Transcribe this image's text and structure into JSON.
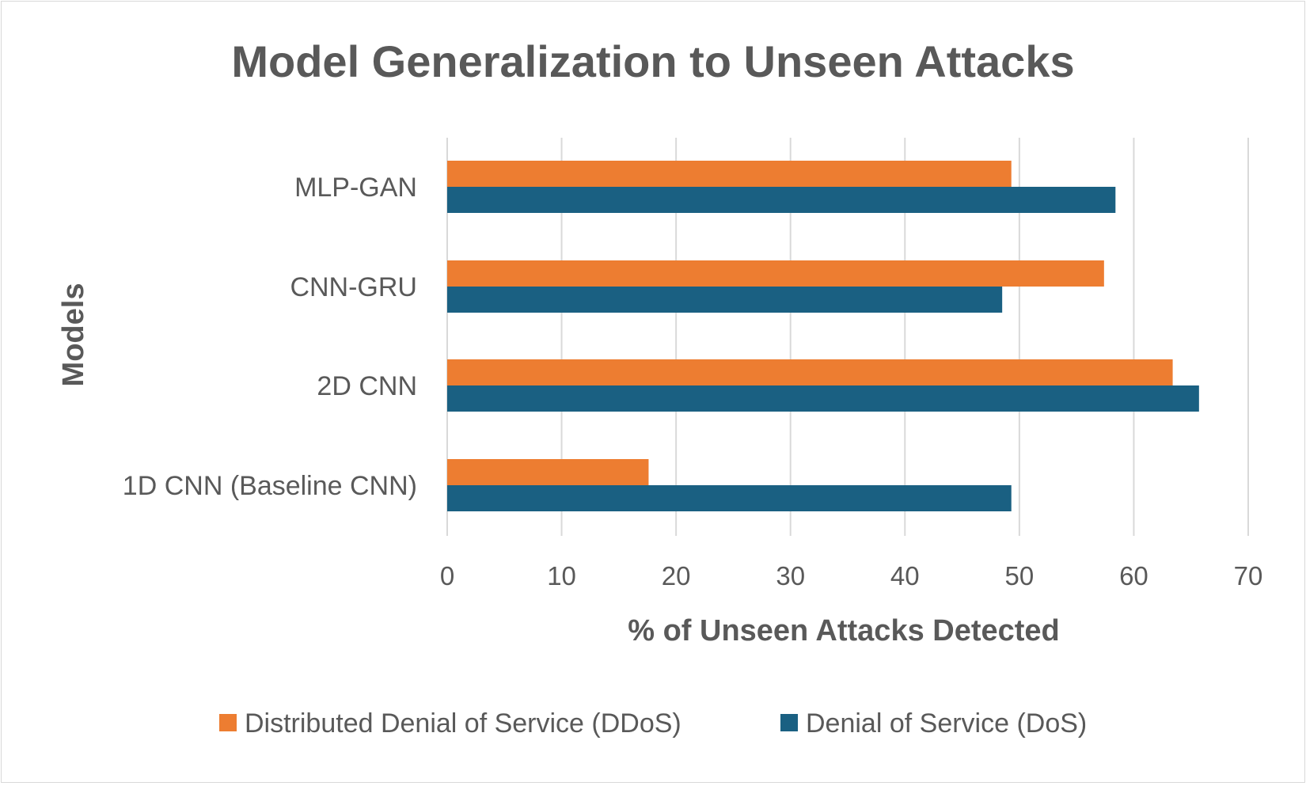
{
  "chart_data": {
    "type": "bar",
    "orientation": "horizontal",
    "title": "Model Generalization to Unseen Attacks",
    "xlabel": "% of Unseen Attacks Detected",
    "ylabel": "Models",
    "categories": [
      "MLP-GAN",
      "CNN-GRU",
      "2D CNN",
      "1D CNN (Baseline CNN)"
    ],
    "xlim": [
      0,
      70
    ],
    "xticks": [
      0,
      10,
      20,
      30,
      40,
      50,
      60,
      70
    ],
    "grid": true,
    "legend_position": "bottom",
    "series": [
      {
        "name": "Distributed Denial of Service (DDoS)",
        "color": "#ED7D31",
        "values": [
          49.3,
          57.4,
          63.4,
          17.6
        ]
      },
      {
        "name": "Denial of Service (DoS)",
        "color": "#1A6082",
        "values": [
          58.4,
          48.5,
          65.7,
          49.3
        ]
      }
    ]
  }
}
